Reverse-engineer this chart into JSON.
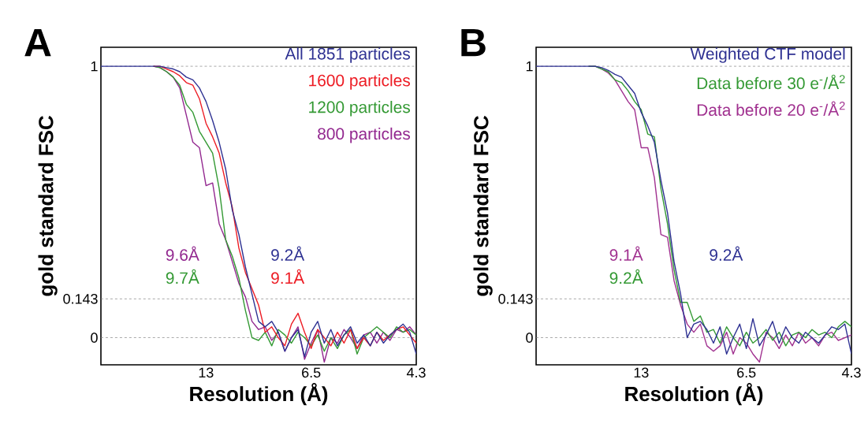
{
  "chart_data": [
    {
      "type": "line",
      "title": "A",
      "xlabel": "Resolution (Å)",
      "ylabel": "gold standard FSC",
      "categories": [
        null,
        null,
        null,
        null,
        null,
        null,
        null,
        null,
        null,
        null,
        null,
        null,
        null,
        null,
        null,
        null,
        "13",
        null,
        null,
        null,
        null,
        null,
        null,
        null,
        null,
        null,
        null,
        null,
        null,
        null,
        null,
        null,
        "6.5",
        null,
        null,
        null,
        null,
        null,
        null,
        null,
        null,
        null,
        null,
        null,
        null,
        null,
        null,
        null,
        "4.3"
      ],
      "series": [
        {
          "name": "All 1851 particles",
          "color": "#2e3192",
          "values": [
            1,
            1,
            1,
            1,
            1,
            1,
            1,
            1,
            1,
            1,
            0.995,
            0.99,
            0.98,
            0.96,
            0.95,
            0.92,
            0.87,
            0.8,
            0.72,
            0.62,
            0.47,
            0.38,
            0.26,
            0.16,
            0.06,
            0.04,
            0.06,
            0.02,
            -0.05,
            0.0,
            0.03,
            -0.07,
            0.02,
            0.06,
            -0.02,
            0.03,
            -0.03,
            0.01,
            0.04,
            -0.02,
            0.01,
            -0.03,
            0.02,
            -0.02,
            0.01,
            0.03,
            0.05,
            0.02,
            -0.06
          ]
        },
        {
          "name": "1600 particles",
          "color": "#ed1c24",
          "values": [
            null,
            null,
            null,
            null,
            null,
            null,
            null,
            null,
            1,
            1,
            0.99,
            0.98,
            0.965,
            0.94,
            0.93,
            0.88,
            0.79,
            0.74,
            0.68,
            0.57,
            0.48,
            0.33,
            0.24,
            0.18,
            0.12,
            0.02,
            0.04,
            0.0,
            -0.03,
            0.05,
            0.09,
            0.02,
            -0.04,
            0.03,
            0.0,
            -0.03,
            0.02,
            -0.02,
            0.03,
            -0.04,
            0.0,
            -0.03,
            0.02,
            -0.01,
            0.01,
            0.03,
            0.04,
            0.01,
            -0.02
          ]
        },
        {
          "name": "1200 particles",
          "color": "#339933",
          "values": [
            null,
            null,
            null,
            null,
            null,
            null,
            null,
            null,
            1,
            0.995,
            0.98,
            0.96,
            0.93,
            0.86,
            0.83,
            0.76,
            0.72,
            0.68,
            0.55,
            0.36,
            0.3,
            0.22,
            0.1,
            0.0,
            -0.01,
            0.02,
            -0.03,
            0.03,
            0.01,
            -0.02,
            0.02,
            0.0,
            -0.03,
            0.01,
            -0.05,
            0.0,
            -0.04,
            0.01,
            0.03,
            -0.06,
            0.0,
            0.02,
            0.04,
            0.02,
            0.0,
            0.04,
            0.02,
            0.03,
            0.01
          ]
        },
        {
          "name": "800 particles",
          "color": "#92278f",
          "values": [
            null,
            null,
            null,
            null,
            null,
            null,
            null,
            null,
            1,
            0.995,
            0.98,
            0.96,
            0.92,
            0.82,
            0.72,
            0.7,
            0.56,
            0.57,
            0.42,
            0.36,
            0.28,
            0.2,
            0.15,
            0.06,
            0.03,
            0.04,
            -0.01,
            0.02,
            -0.05,
            0.0,
            0.04,
            -0.08,
            -0.02,
            0.03,
            -0.09,
            0.0,
            -0.02,
            0.03,
            0.0,
            -0.04,
            0.01,
            0.02,
            -0.02,
            0.02,
            -0.01,
            0.03,
            0.02,
            0.04,
            0.01
          ]
        }
      ],
      "ylim": [
        -0.1,
        1.07
      ],
      "yticks": [
        0,
        0.143,
        1
      ],
      "legend": "top right",
      "ref_lines": [
        {
          "axis": "y",
          "value": 1,
          "color": "#808080",
          "line_style": "dashed"
        },
        {
          "axis": "y",
          "value": 0.143,
          "color": "#808080",
          "line_style": "dashed"
        },
        {
          "axis": "y",
          "value": 0,
          "color": "#808080",
          "line_style": "dashed"
        }
      ],
      "annotations": [
        "9.6Å",
        "9.7Å",
        "9.2Å",
        "9.1Å"
      ]
    },
    {
      "type": "line",
      "title": "B",
      "xlabel": "Resolution (Å)",
      "ylabel": "gold standard FSC",
      "categories": [
        null,
        null,
        null,
        null,
        null,
        null,
        null,
        null,
        null,
        null,
        null,
        null,
        null,
        null,
        null,
        null,
        "13",
        null,
        null,
        null,
        null,
        null,
        null,
        null,
        null,
        null,
        null,
        null,
        null,
        null,
        null,
        null,
        "6.5",
        null,
        null,
        null,
        null,
        null,
        null,
        null,
        null,
        null,
        null,
        null,
        null,
        null,
        null,
        null,
        "4.3"
      ],
      "series": [
        {
          "name": "Weighted CTF model",
          "color": "#2e3192",
          "values": [
            1,
            1,
            1,
            1,
            1,
            1,
            1,
            1,
            1,
            1,
            0.995,
            0.985,
            0.97,
            0.96,
            0.93,
            0.9,
            0.83,
            0.78,
            0.72,
            0.58,
            0.46,
            0.28,
            0.16,
            0.0,
            0.05,
            0.06,
            0.03,
            -0.02,
            0.04,
            -0.06,
            0.0,
            0.05,
            -0.04,
            0.07,
            -0.03,
            0.01,
            0.06,
            -0.02,
            0.04,
            0.0,
            -0.02,
            0.02,
            0.0,
            -0.02,
            0.01,
            0.04,
            0.03,
            0.05,
            -0.06
          ]
        },
        {
          "name": "Data before 30 e$^{-}$/Å$^{2}$",
          "color": "#339933",
          "values": [
            null,
            null,
            null,
            null,
            null,
            null,
            null,
            null,
            1,
            1,
            0.99,
            0.98,
            0.95,
            0.94,
            0.91,
            0.87,
            0.84,
            0.75,
            0.74,
            0.55,
            0.42,
            0.25,
            0.13,
            0.13,
            0.06,
            0.08,
            0.02,
            0.03,
            -0.02,
            0.04,
            0.0,
            -0.03,
            0.02,
            -0.02,
            0.0,
            0.03,
            -0.01,
            0.02,
            -0.03,
            0.01,
            0.02,
            0.0,
            0.03,
            0.01,
            0.02,
            0.0,
            0.04,
            0.06,
            0.04
          ]
        },
        {
          "name": "Data before 20 e$^{-}$/Å$^{2}$",
          "color": "#a0308f",
          "values": [
            null,
            null,
            null,
            null,
            null,
            null,
            null,
            null,
            1,
            1,
            0.99,
            0.975,
            0.95,
            0.91,
            0.87,
            0.84,
            0.7,
            0.7,
            0.59,
            0.38,
            0.37,
            0.21,
            0.12,
            0.05,
            0.02,
            0.05,
            -0.03,
            -0.05,
            -0.03,
            0.02,
            -0.06,
            0.0,
            -0.02,
            -0.06,
            -0.09,
            0.02,
            0.0,
            -0.04,
            0.01,
            -0.03,
            0.02,
            -0.02,
            0.0,
            -0.03,
            0.01,
            0.02,
            -0.01,
            0.0,
            0.01
          ]
        }
      ],
      "ylim": [
        -0.1,
        1.07
      ],
      "yticks": [
        0,
        0.143,
        1
      ],
      "legend": "top right",
      "ref_lines": [
        {
          "axis": "y",
          "value": 1,
          "color": "#808080",
          "line_style": "dashed"
        },
        {
          "axis": "y",
          "value": 0.143,
          "color": "#808080",
          "line_style": "dashed"
        },
        {
          "axis": "y",
          "value": 0,
          "color": "#808080",
          "line_style": "dashed"
        }
      ],
      "annotations": [
        "9.1Å",
        "9.2Å",
        "9.2Å"
      ]
    }
  ]
}
